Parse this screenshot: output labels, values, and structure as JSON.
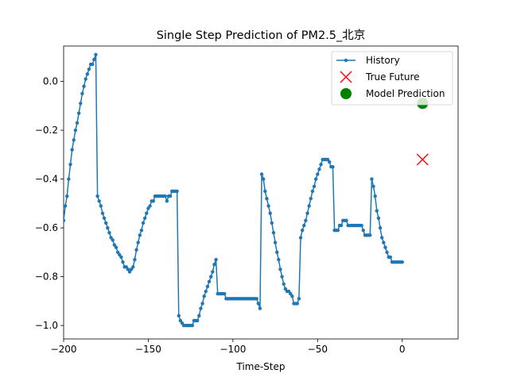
{
  "chart_data": {
    "type": "line",
    "title": "Single Step Prediction of PM2.5_北京",
    "xlabel": "Time-Step",
    "ylabel": "",
    "xlim": [
      -200,
      33
    ],
    "ylim": [
      -1.055,
      0.145
    ],
    "xticks": [
      -200,
      -150,
      -100,
      -50,
      0
    ],
    "xtick_labels": [
      "−200",
      "−150",
      "−100",
      "−50",
      "0"
    ],
    "yticks": [
      0.0,
      -0.2,
      -0.4,
      -0.6,
      -0.8,
      -1.0
    ],
    "ytick_labels": [
      "0.0",
      "−0.2",
      "−0.4",
      "−0.6",
      "−0.8",
      "−1.0"
    ],
    "grid": false,
    "legend_position": "top-right",
    "colors": {
      "history": "#1f77b4",
      "true_future": "#ff0000",
      "model_prediction": "#008000"
    },
    "series": [
      {
        "name": "History",
        "marker": "dot",
        "x": [
          -200,
          -199,
          -198,
          -197,
          -196,
          -195,
          -194,
          -193,
          -192,
          -191,
          -190,
          -189,
          -188,
          -187,
          -186,
          -185,
          -184,
          -183,
          -182,
          -181,
          -180,
          -179,
          -178,
          -177,
          -176,
          -175,
          -174,
          -173,
          -172,
          -171,
          -170,
          -169,
          -168,
          -167,
          -166,
          -165,
          -164,
          -163,
          -162,
          -161,
          -160,
          -159,
          -158,
          -157,
          -156,
          -155,
          -154,
          -153,
          -152,
          -151,
          -150,
          -149,
          -148,
          -147,
          -146,
          -145,
          -144,
          -143,
          -142,
          -141,
          -140,
          -139,
          -138,
          -137,
          -136,
          -135,
          -134,
          -133,
          -132,
          -131,
          -130,
          -129,
          -128,
          -127,
          -126,
          -125,
          -124,
          -123,
          -122,
          -121,
          -120,
          -119,
          -118,
          -117,
          -116,
          -115,
          -114,
          -113,
          -112,
          -111,
          -110,
          -109,
          -108,
          -107,
          -106,
          -105,
          -104,
          -103,
          -102,
          -101,
          -100,
          -99,
          -98,
          -97,
          -96,
          -95,
          -94,
          -93,
          -92,
          -91,
          -90,
          -89,
          -88,
          -87,
          -86,
          -85,
          -84,
          -83,
          -82,
          -81,
          -80,
          -79,
          -78,
          -77,
          -76,
          -75,
          -74,
          -73,
          -72,
          -71,
          -70,
          -69,
          -68,
          -67,
          -66,
          -65,
          -64,
          -63,
          -62,
          -61,
          -60,
          -59,
          -58,
          -57,
          -56,
          -55,
          -54,
          -53,
          -52,
          -51,
          -50,
          -49,
          -48,
          -47,
          -46,
          -45,
          -44,
          -43,
          -42,
          -41,
          -40,
          -39,
          -38,
          -37,
          -36,
          -35,
          -34,
          -33,
          -32,
          -31,
          -30,
          -29,
          -28,
          -27,
          -26,
          -25,
          -24,
          -23,
          -22,
          -21,
          -20,
          -19,
          -18,
          -17,
          -16,
          -15,
          -14,
          -13,
          -12,
          -11,
          -10,
          -9,
          -8,
          -7,
          -6,
          -5,
          -4,
          -3,
          -2,
          -1,
          0
        ],
        "y": [
          -0.57,
          -0.51,
          -0.47,
          -0.4,
          -0.34,
          -0.28,
          -0.24,
          -0.2,
          -0.17,
          -0.13,
          -0.09,
          -0.05,
          -0.02,
          0.01,
          0.03,
          0.05,
          0.07,
          0.07,
          0.09,
          0.11,
          -0.47,
          -0.49,
          -0.51,
          -0.54,
          -0.56,
          -0.58,
          -0.6,
          -0.62,
          -0.64,
          -0.65,
          -0.67,
          -0.68,
          -0.7,
          -0.71,
          -0.72,
          -0.74,
          -0.76,
          -0.76,
          -0.77,
          -0.78,
          -0.77,
          -0.76,
          -0.73,
          -0.69,
          -0.66,
          -0.63,
          -0.61,
          -0.58,
          -0.56,
          -0.54,
          -0.52,
          -0.51,
          -0.49,
          -0.49,
          -0.47,
          -0.47,
          -0.47,
          -0.47,
          -0.47,
          -0.47,
          -0.47,
          -0.49,
          -0.47,
          -0.47,
          -0.45,
          -0.45,
          -0.45,
          -0.45,
          -0.96,
          -0.98,
          -0.99,
          -1.0,
          -1.0,
          -1.0,
          -1.0,
          -1.0,
          -1.0,
          -0.98,
          -0.98,
          -0.98,
          -0.96,
          -0.93,
          -0.91,
          -0.88,
          -0.86,
          -0.84,
          -0.82,
          -0.8,
          -0.78,
          -0.75,
          -0.73,
          -0.87,
          -0.87,
          -0.87,
          -0.87,
          -0.87,
          -0.89,
          -0.89,
          -0.89,
          -0.89,
          -0.89,
          -0.89,
          -0.89,
          -0.89,
          -0.89,
          -0.89,
          -0.89,
          -0.89,
          -0.89,
          -0.89,
          -0.89,
          -0.89,
          -0.89,
          -0.89,
          -0.89,
          -0.91,
          -0.93,
          -0.38,
          -0.4,
          -0.45,
          -0.48,
          -0.51,
          -0.54,
          -0.58,
          -0.62,
          -0.66,
          -0.7,
          -0.73,
          -0.77,
          -0.8,
          -0.83,
          -0.85,
          -0.86,
          -0.86,
          -0.87,
          -0.88,
          -0.91,
          -0.91,
          -0.91,
          -0.89,
          -0.64,
          -0.61,
          -0.59,
          -0.57,
          -0.54,
          -0.51,
          -0.48,
          -0.45,
          -0.43,
          -0.4,
          -0.38,
          -0.36,
          -0.34,
          -0.32,
          -0.32,
          -0.32,
          -0.32,
          -0.33,
          -0.35,
          -0.35,
          -0.61,
          -0.61,
          -0.61,
          -0.59,
          -0.59,
          -0.57,
          -0.57,
          -0.57,
          -0.59,
          -0.59,
          -0.59,
          -0.59,
          -0.59,
          -0.59,
          -0.59,
          -0.59,
          -0.59,
          -0.61,
          -0.63,
          -0.63,
          -0.63,
          -0.63,
          -0.4,
          -0.43,
          -0.47,
          -0.53,
          -0.56,
          -0.6,
          -0.64,
          -0.66,
          -0.68,
          -0.7,
          -0.72,
          -0.72,
          -0.74,
          -0.74,
          -0.74,
          -0.74,
          -0.74,
          -0.74,
          -0.74
        ]
      },
      {
        "name": "True Future",
        "marker": "x",
        "x": [
          12
        ],
        "y": [
          -0.32
        ]
      },
      {
        "name": "Model Prediction",
        "marker": "circle",
        "x": [
          12
        ],
        "y": [
          -0.09
        ]
      }
    ]
  }
}
